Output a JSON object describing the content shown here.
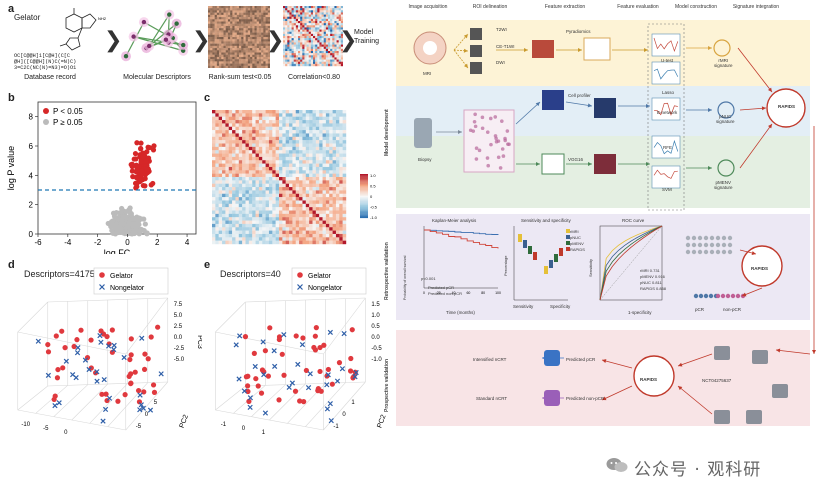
{
  "panel_a": {
    "letter": "a",
    "title": "Gelator",
    "smiles": [
      "OC[C@@H]1[C@H](C[C",
      "@H]([C@@H](N)C(=N)C)",
      "3=C2C(NC(N)=N3)=O)O1"
    ],
    "captions": [
      "Database record",
      "Molecular Descriptors",
      "Rank-sum test<0.05",
      "Correlation<0.80"
    ],
    "final_step": "Model\nTraining"
  },
  "panel_b": {
    "letter": "b",
    "legend": [
      "P < 0.05",
      "P ≥ 0.05"
    ],
    "colors": {
      "sig": "#d62728",
      "nonsig": "#bbbbbb",
      "threshold": "#1f77b4"
    }
  },
  "panel_c": {
    "letter": "c",
    "colorbar_ticks": [
      "1.0",
      "0.5",
      "0",
      "-0.5",
      "-1.0"
    ]
  },
  "panel_d": {
    "letter": "d",
    "title": "Descriptors=4175",
    "legend": [
      "Gelator",
      "Nongelator"
    ]
  },
  "panel_e": {
    "letter": "e",
    "title": "Descriptors=40",
    "legend": [
      "Gelator",
      "Nongelator"
    ]
  },
  "workflow": {
    "headers": [
      "Image acquisition",
      "ROI delineation",
      "Feature extraction",
      "Feature evaluation",
      "Model construction",
      "Signature integration"
    ],
    "row_labels": [
      "Model development",
      "Retrospective validation",
      "Prospective validation"
    ],
    "mri": {
      "label": "MRI",
      "seq": [
        "T2WI",
        "CE-T1WI",
        "DWI"
      ],
      "tool": "Pyradiomics",
      "sig": "rMRI\nsignature"
    },
    "path1": {
      "label": "Biopsy",
      "tool": "Cell profiler",
      "sig": "pNUC\nsignature"
    },
    "path2": {
      "tool": "VGG16",
      "sig": "pMENV\nsignature"
    },
    "eval": [
      "U-test",
      "Lasso",
      "E-network",
      "RFE",
      "SVM"
    ],
    "center": "RAPIDS",
    "retro": {
      "km_title": "Kaplan-Meier analysis",
      "sens_title": "Sensitivity and specificity",
      "roc_title": "ROC curve",
      "km_legend": [
        "Predicted pCR",
        "Predicted non-pCR"
      ],
      "km_p": "p<0.001",
      "km_xlabel": "Time (months)",
      "km_ylabel": "Probability of overall survival",
      "km_xticks": [
        "0",
        "20",
        "40",
        "60",
        "80",
        "100"
      ],
      "sens_legend": [
        "rMRI",
        "pNUC",
        "pMENV",
        "RAPIDS"
      ],
      "sens_xlabels": [
        "Sensitivity",
        "Specificity"
      ],
      "sens_ylabel": "Percentage",
      "roc_legend": [
        "rMRI 0.731",
        "pMENV 0.916",
        "pNUC 0.811",
        "RAPIDS 0.858"
      ],
      "roc_xlabel": "1-specificity",
      "roc_ylabel": "Sensitivity",
      "labels": [
        "pCR",
        "non-pCR"
      ]
    },
    "prosp": {
      "trial": "NCT04275637",
      "outputs": [
        "Predicted pCR",
        "Predicted non-pCR"
      ],
      "treat": [
        "Intensified nCRT",
        "Standard nCRT"
      ]
    },
    "colors": {
      "yellow": "#fdf3d6",
      "blue": "#e3eef6",
      "green": "#e4efe2",
      "purple": "#ece8f4",
      "pink": "#f8e4e6",
      "arrow": "#c0392b"
    }
  },
  "watermark": "公众号 · 观科研"
}
